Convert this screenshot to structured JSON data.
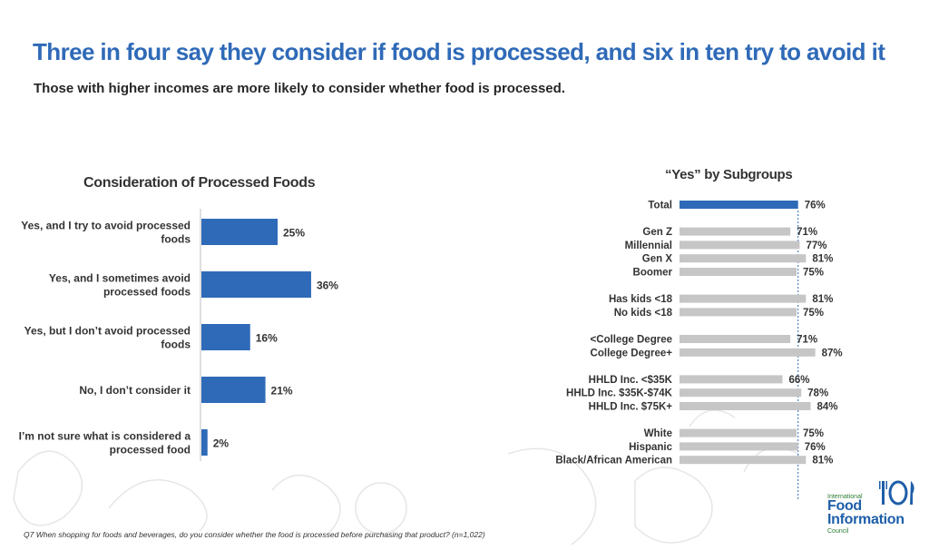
{
  "header": {
    "title": "Three in four say they consider if food is processed, and six in ten try to avoid it",
    "subtitle": "Those with higher incomes are more likely to consider whether food is processed."
  },
  "chart_data": [
    {
      "type": "bar",
      "orientation": "horizontal",
      "title": "Consideration of Processed Foods",
      "categories": [
        [
          "Yes, and I try to avoid processed",
          "foods"
        ],
        [
          "Yes, and I sometimes avoid",
          "processed foods"
        ],
        [
          "Yes, but I don’t avoid processed",
          "foods"
        ],
        [
          "No, I don’t consider it"
        ],
        [
          "I’m not sure what is considered a",
          "processed food"
        ]
      ],
      "values": [
        25,
        36,
        16,
        21,
        2
      ],
      "value_labels": [
        "25%",
        "36%",
        "16%",
        "21%",
        "2%"
      ],
      "color": "#2f6ab8"
    },
    {
      "type": "bar",
      "orientation": "horizontal",
      "title": "“Yes” by Subgroups",
      "groups": [
        [
          {
            "label": "Total",
            "value": 76,
            "value_label": "76%",
            "highlight": true
          }
        ],
        [
          {
            "label": "Gen Z",
            "value": 71,
            "value_label": "71%"
          },
          {
            "label": "Millennial",
            "value": 77,
            "value_label": "77%"
          },
          {
            "label": "Gen X",
            "value": 81,
            "value_label": "81%"
          },
          {
            "label": "Boomer",
            "value": 75,
            "value_label": "75%"
          }
        ],
        [
          {
            "label": "Has kids <18",
            "value": 81,
            "value_label": "81%"
          },
          {
            "label": "No kids <18",
            "value": 75,
            "value_label": "75%"
          }
        ],
        [
          {
            "label": "<College Degree",
            "value": 71,
            "value_label": "71%"
          },
          {
            "label": "College Degree+",
            "value": 87,
            "value_label": "87%"
          }
        ],
        [
          {
            "label": "HHLD Inc. <$35K",
            "value": 66,
            "value_label": "66%"
          },
          {
            "label": "HHLD Inc. $35K-$74K",
            "value": 78,
            "value_label": "78%"
          },
          {
            "label": "HHLD Inc. $75K+",
            "value": 84,
            "value_label": "84%"
          }
        ],
        [
          {
            "label": "White",
            "value": 75,
            "value_label": "75%"
          },
          {
            "label": "Hispanic",
            "value": 76,
            "value_label": "76%"
          },
          {
            "label": "Black/African American",
            "value": 81,
            "value_label": "81%"
          }
        ]
      ],
      "reference_line": 76,
      "highlight_color": "#2f6ab8",
      "color": "#c6c6c6"
    }
  ],
  "footnote": "Q7  When shopping for foods and beverages, do you consider whether the food is processed before purchasing that product? (n=1,022)",
  "logo": {
    "line1": "International",
    "line2": "Food",
    "line3": "Information",
    "line4": "Council",
    "icon": "fork-plate-knife-icon"
  }
}
